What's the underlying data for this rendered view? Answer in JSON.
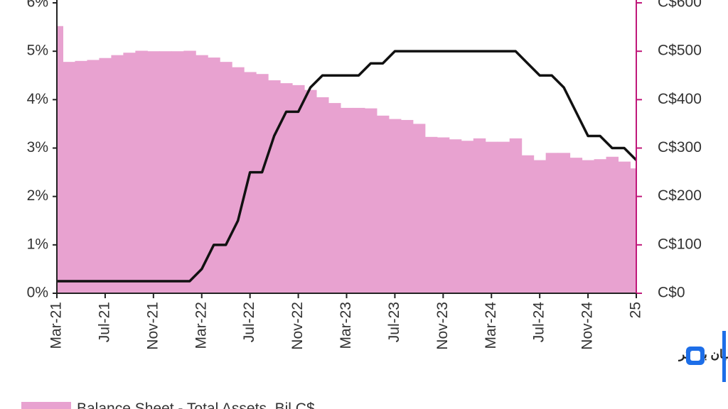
{
  "chart_data": {
    "type": "bar-line",
    "categories": [
      "Mar-21",
      null,
      null,
      null,
      "Jul-21",
      null,
      null,
      null,
      "Nov-21",
      null,
      null,
      null,
      "Mar-22",
      null,
      null,
      null,
      "Jul-22",
      null,
      null,
      null,
      "Nov-22",
      null,
      null,
      null,
      "Mar-23",
      null,
      null,
      null,
      "Jul-23",
      null,
      null,
      null,
      "Nov-23",
      null,
      null,
      null,
      "Mar-24",
      null,
      null,
      null,
      "Jul-24",
      null,
      null,
      null,
      "Nov-24",
      null,
      null,
      null,
      "25"
    ],
    "series": [
      {
        "name": "Balance Sheet - Total Assets, Bil C$",
        "type": "bar",
        "axis": "y2",
        "color": "#e8a2d0",
        "values": [
          552,
          478,
          480,
          482,
          486,
          492,
          497,
          501,
          500,
          500,
          500,
          501,
          492,
          487,
          478,
          467,
          457,
          453,
          440,
          434,
          430,
          420,
          405,
          393,
          383,
          383,
          382,
          367,
          360,
          358,
          350,
          323,
          322,
          318,
          315,
          320,
          313,
          313,
          320,
          285,
          275,
          290,
          290,
          280,
          275,
          277,
          282,
          272,
          258
        ]
      },
      {
        "type": "line",
        "axis": "y",
        "color": "#111111",
        "values": [
          0.25,
          0.25,
          0.25,
          0.25,
          0.25,
          0.25,
          0.25,
          0.25,
          0.25,
          0.25,
          0.25,
          0.25,
          0.5,
          1.0,
          1.0,
          1.5,
          2.5,
          2.5,
          3.25,
          3.75,
          3.75,
          4.25,
          4.5,
          4.5,
          4.5,
          4.5,
          4.75,
          4.75,
          5.0,
          5.0,
          5.0,
          5.0,
          5.0,
          5.0,
          5.0,
          5.0,
          5.0,
          5.0,
          5.0,
          4.75,
          4.5,
          4.5,
          4.25,
          3.75,
          3.25,
          3.25,
          3.0,
          3.0,
          2.75
        ]
      }
    ],
    "ylim": [
      0,
      6
    ],
    "yticks": [
      {
        "value": 0,
        "label": "0%"
      },
      {
        "value": 1,
        "label": "1%"
      },
      {
        "value": 2,
        "label": "2%"
      },
      {
        "value": 3,
        "label": "3%"
      },
      {
        "value": 4,
        "label": "4%"
      },
      {
        "value": 5,
        "label": "5%"
      },
      {
        "value": 6,
        "label": "6%"
      }
    ],
    "y2lim": [
      0,
      600
    ],
    "y2ticks": [
      {
        "value": 0,
        "label": "C$0"
      },
      {
        "value": 100,
        "label": "C$100"
      },
      {
        "value": 200,
        "label": "C$200"
      },
      {
        "value": 300,
        "label": "C$300"
      },
      {
        "value": 400,
        "label": "C$400"
      },
      {
        "value": 500,
        "label": "C$500"
      },
      {
        "value": 600,
        "label": "C$600"
      }
    ],
    "y2_axis_color": "#c0187a"
  },
  "watermark": "لیان بروکر"
}
